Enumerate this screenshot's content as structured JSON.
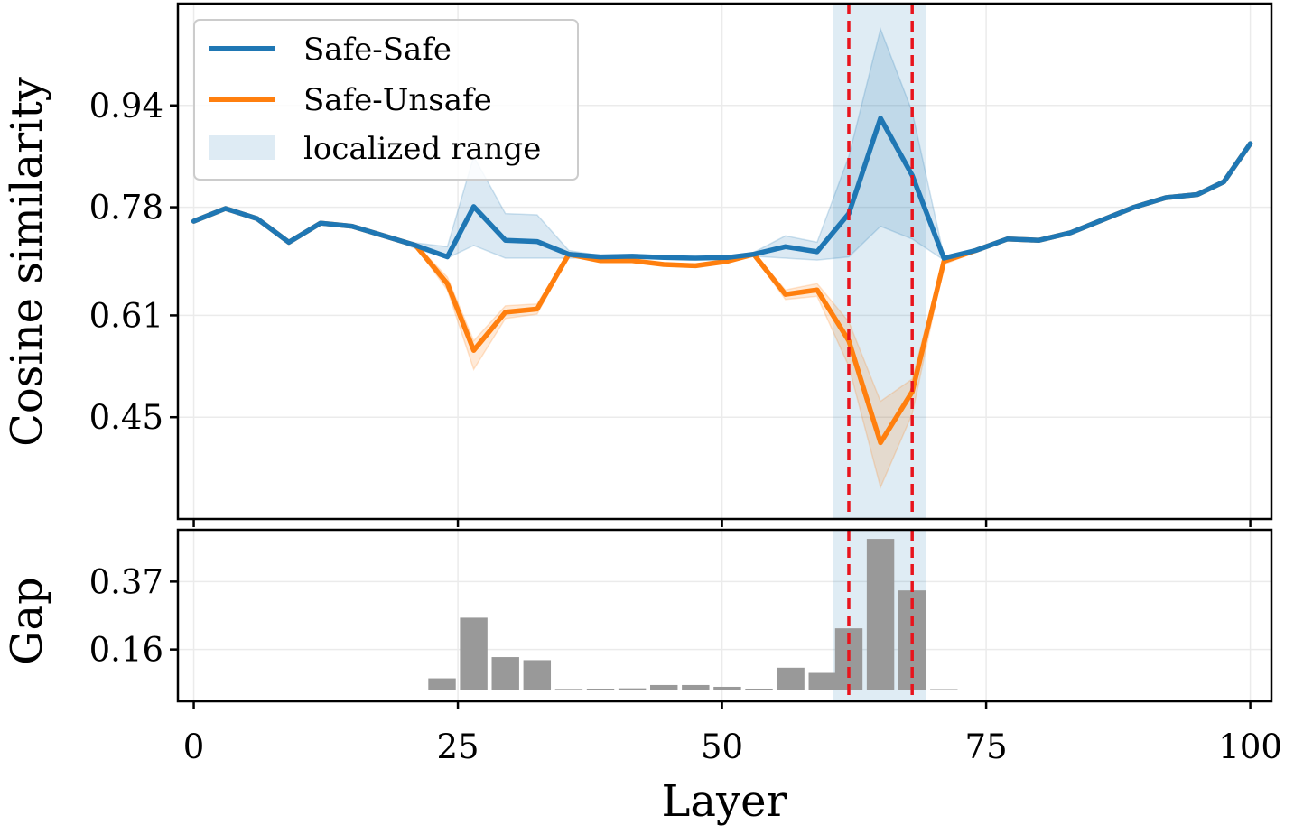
{
  "chart_data": [
    {
      "type": "line",
      "panel": "top",
      "ylabel": "Cosine similarity",
      "xlim": [
        -1.5,
        102
      ],
      "ylim": [
        0.29,
        1.1
      ],
      "yticks": [
        0.45,
        0.61,
        0.78,
        0.94
      ],
      "ytick_labels": [
        "0.45",
        "0.61",
        "0.78",
        "0.94"
      ],
      "xticks": [
        0,
        25,
        50,
        75,
        100
      ],
      "grid": true,
      "legend_position": "top-left",
      "legend": [
        "Safe-Safe",
        "Safe-Unsafe",
        "localized range"
      ],
      "localized_range": [
        60.5,
        69.3
      ],
      "markers": [
        62,
        68
      ],
      "x": [
        0,
        3,
        6,
        9,
        12,
        15,
        18,
        21,
        24,
        26.5,
        29.5,
        32.5,
        35.5,
        38.5,
        41.5,
        44.5,
        47.5,
        50.5,
        53,
        56,
        59,
        62,
        65,
        68,
        71,
        74,
        77,
        80,
        83,
        86,
        89,
        92,
        95,
        97.5,
        100
      ],
      "series": [
        {
          "name": "Safe-Safe",
          "color": "#1f77b4",
          "values": [
            0.758,
            0.778,
            0.762,
            0.725,
            0.755,
            0.75,
            0.735,
            0.72,
            0.702,
            0.781,
            0.728,
            0.726,
            0.706,
            0.702,
            0.703,
            0.701,
            0.7,
            0.701,
            0.706,
            0.718,
            0.71,
            0.77,
            0.92,
            0.83,
            0.7,
            0.712,
            0.73,
            0.728,
            0.74,
            0.76,
            0.78,
            0.795,
            0.8,
            0.82,
            0.88
          ],
          "band_lower": [
            0.758,
            0.778,
            0.762,
            0.725,
            0.755,
            0.75,
            0.735,
            0.715,
            0.7,
            0.72,
            0.7,
            0.7,
            0.7,
            0.7,
            0.7,
            0.699,
            0.699,
            0.7,
            0.703,
            0.7,
            0.697,
            0.702,
            0.75,
            0.73,
            0.697,
            0.71,
            0.73,
            0.728,
            0.74,
            0.76,
            0.78,
            0.795,
            0.8,
            0.82,
            0.88
          ],
          "band_upper": [
            0.758,
            0.778,
            0.762,
            0.725,
            0.755,
            0.75,
            0.735,
            0.724,
            0.718,
            0.86,
            0.77,
            0.768,
            0.712,
            0.704,
            0.706,
            0.703,
            0.702,
            0.703,
            0.709,
            0.735,
            0.725,
            0.86,
            1.06,
            0.93,
            0.703,
            0.714,
            0.73,
            0.728,
            0.74,
            0.76,
            0.78,
            0.795,
            0.8,
            0.82,
            0.88
          ]
        },
        {
          "name": "Safe-Unsafe",
          "color": "#ff7f0e",
          "values": [
            0.758,
            0.778,
            0.762,
            0.725,
            0.755,
            0.75,
            0.735,
            0.72,
            0.66,
            0.555,
            0.615,
            0.62,
            0.706,
            0.696,
            0.696,
            0.69,
            0.688,
            0.695,
            0.706,
            0.643,
            0.65,
            0.57,
            0.41,
            0.49,
            0.695,
            0.712,
            0.73,
            0.728,
            0.74,
            0.76,
            0.78,
            0.795,
            0.8,
            0.82,
            0.88
          ],
          "band_lower": [
            0.758,
            0.778,
            0.762,
            0.725,
            0.755,
            0.75,
            0.735,
            0.718,
            0.65,
            0.525,
            0.605,
            0.612,
            0.704,
            0.694,
            0.694,
            0.688,
            0.686,
            0.693,
            0.704,
            0.635,
            0.64,
            0.53,
            0.34,
            0.455,
            0.69,
            0.71,
            0.73,
            0.728,
            0.74,
            0.76,
            0.78,
            0.795,
            0.8,
            0.82,
            0.88
          ],
          "band_upper": [
            0.758,
            0.778,
            0.762,
            0.725,
            0.755,
            0.75,
            0.735,
            0.722,
            0.67,
            0.57,
            0.625,
            0.628,
            0.708,
            0.698,
            0.698,
            0.692,
            0.69,
            0.697,
            0.708,
            0.65,
            0.66,
            0.6,
            0.475,
            0.51,
            0.7,
            0.714,
            0.73,
            0.728,
            0.74,
            0.76,
            0.78,
            0.795,
            0.8,
            0.82,
            0.88
          ]
        }
      ]
    },
    {
      "type": "bar",
      "panel": "bottom",
      "xlabel": "Layer",
      "ylabel": "Gap",
      "xlim": [
        -1.5,
        102
      ],
      "ylim": [
        0,
        0.53
      ],
      "yticks": [
        0.16,
        0.37
      ],
      "ytick_labels": [
        "0.16",
        "0.37"
      ],
      "xticks": [
        0,
        25,
        50,
        75,
        100
      ],
      "xtick_labels": [
        "0",
        "25",
        "50",
        "75",
        "100"
      ],
      "grid": true,
      "color": "#999999",
      "localized_range": [
        60.5,
        69.3
      ],
      "markers": [
        62,
        68
      ],
      "x": [
        23.5,
        26.5,
        29.5,
        32.5,
        35.5,
        38.5,
        41.5,
        44.5,
        47.5,
        50.5,
        53.5,
        56.5,
        59.5,
        62,
        65,
        68,
        71
      ],
      "values": [
        0.04,
        0.24,
        0.11,
        0.1,
        0.005,
        0.006,
        0.007,
        0.018,
        0.018,
        0.012,
        0.006,
        0.075,
        0.058,
        0.205,
        0.5,
        0.33,
        0.004
      ]
    }
  ]
}
